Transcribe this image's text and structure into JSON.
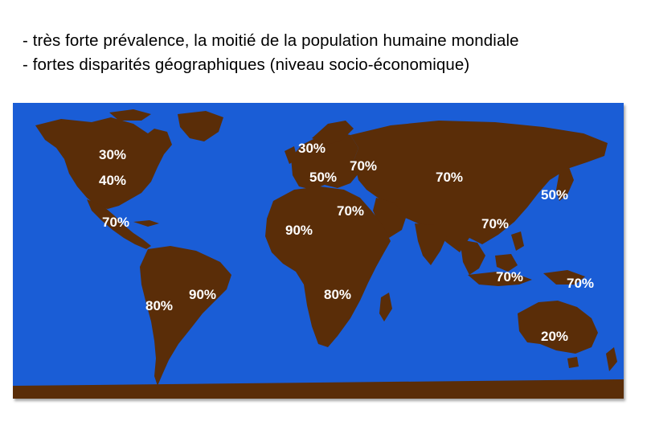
{
  "bullets": [
    "- très forte prévalence, la moitié de la population humaine mondiale",
    "- fortes disparités géographiques (niveau socio-économique)"
  ],
  "map": {
    "ocean_color": "#1a5dd6",
    "land_color": "#5a2d08",
    "label_color": "#ffffff",
    "labels": {
      "canada": "30%",
      "usa": "40%",
      "central_america": "70%",
      "brazil": "90%",
      "south_america": "80%",
      "northern_europe": "30%",
      "southern_europe": "50%",
      "eastern_europe": "70%",
      "russia": "70%",
      "north_africa": "70%",
      "africa": "90%",
      "southern_africa": "80%",
      "japan": "50%",
      "south_asia": "70%",
      "southeast_asia": "70%",
      "papua": "70%",
      "australia": "20%"
    }
  }
}
